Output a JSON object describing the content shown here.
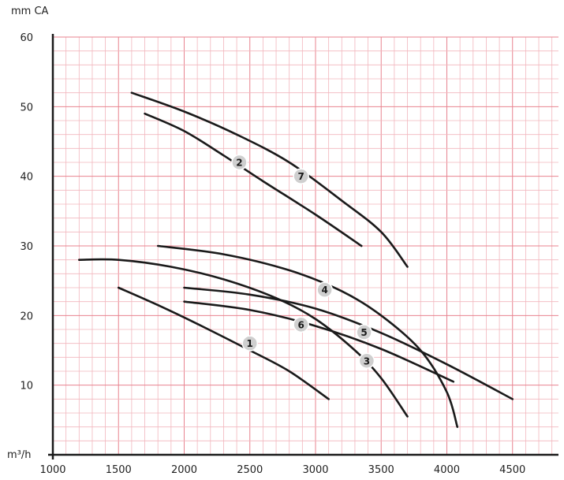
{
  "chart_data": {
    "type": "line",
    "title": "",
    "xlabel": "m³/h",
    "ylabel": "mm CA",
    "xlim": [
      1000,
      4850
    ],
    "ylim": [
      0,
      60
    ],
    "x_ticks": [
      1000,
      1500,
      2000,
      2500,
      3000,
      3500,
      4000,
      4500
    ],
    "y_ticks": [
      10,
      20,
      30,
      40,
      50,
      60
    ],
    "grid": true,
    "series": [
      {
        "name": "1",
        "points": [
          [
            1500,
            24
          ],
          [
            1800,
            21.5
          ],
          [
            2100,
            18.8
          ],
          [
            2500,
            15
          ],
          [
            2800,
            12
          ],
          [
            3100,
            8
          ]
        ],
        "label_at": [
          2500,
          16
        ]
      },
      {
        "name": "2",
        "points": [
          [
            1700,
            49
          ],
          [
            2000,
            46.5
          ],
          [
            2300,
            43
          ],
          [
            2600,
            39.3
          ],
          [
            3000,
            34.5
          ],
          [
            3350,
            30
          ]
        ],
        "label_at": [
          2420,
          42
        ]
      },
      {
        "name": "3",
        "points": [
          [
            1200,
            28
          ],
          [
            1500,
            28
          ],
          [
            1900,
            27
          ],
          [
            2300,
            25.2
          ],
          [
            2700,
            22.5
          ],
          [
            3000,
            19.5
          ],
          [
            3300,
            15
          ],
          [
            3500,
            11
          ],
          [
            3700,
            5.5
          ]
        ],
        "label_at": [
          3390,
          13.5
        ]
      },
      {
        "name": "4",
        "points": [
          [
            1800,
            30
          ],
          [
            2300,
            28.8
          ],
          [
            2800,
            26.5
          ],
          [
            3200,
            23.5
          ],
          [
            3500,
            20
          ],
          [
            3800,
            15
          ],
          [
            4000,
            9
          ],
          [
            4080,
            4
          ]
        ],
        "label_at": [
          3070,
          23.7
        ]
      },
      {
        "name": "5",
        "points": [
          [
            2000,
            24
          ],
          [
            2500,
            23
          ],
          [
            3000,
            21
          ],
          [
            3500,
            17.5
          ],
          [
            4000,
            13
          ],
          [
            4500,
            8
          ]
        ],
        "label_at": [
          3370,
          17.6
        ]
      },
      {
        "name": "6",
        "points": [
          [
            2000,
            22
          ],
          [
            2500,
            20.8
          ],
          [
            3000,
            18.5
          ],
          [
            3500,
            15.2
          ],
          [
            4050,
            10.5
          ]
        ],
        "label_at": [
          2890,
          18.7
        ]
      },
      {
        "name": "7",
        "points": [
          [
            1600,
            52
          ],
          [
            2000,
            49.3
          ],
          [
            2400,
            46
          ],
          [
            2800,
            42
          ],
          [
            3200,
            36.5
          ],
          [
            3500,
            32
          ],
          [
            3700,
            27
          ]
        ],
        "label_at": [
          2890,
          40
        ]
      }
    ]
  }
}
